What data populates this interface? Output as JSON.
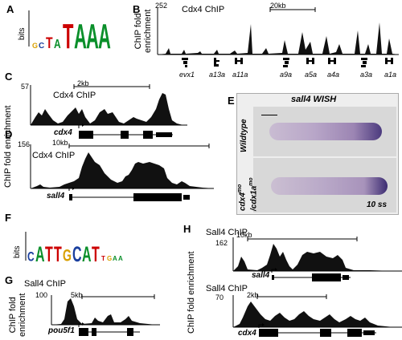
{
  "panels": {
    "A": {
      "label": "A",
      "ylabel": "bits",
      "motif": "GCTATAAA"
    },
    "B": {
      "label": "B",
      "chip": "Cdx4 ChIP",
      "ymax": "252",
      "ylabel_line1": "ChIP fold",
      "ylabel_line2": "enrichment",
      "scale": "20kb",
      "genes": [
        "evx1",
        "a13a",
        "a11a",
        "a9a",
        "a5a",
        "a4a",
        "a3a",
        "a1a"
      ]
    },
    "C": {
      "label": "C",
      "chip": "Cdx4 ChIP",
      "ymax": "57",
      "scale": "2kb",
      "gene": "cdx4"
    },
    "D": {
      "label": "D",
      "chip": "Cdx4 ChIP",
      "ymax": "156",
      "scale": "10kb",
      "gene": "sall4"
    },
    "CD_ylabel": "ChIP fold enrichment",
    "E": {
      "label": "E",
      "title": "sall4 WISH",
      "row1": "Wildtype",
      "row2_line1": "cdx4",
      "row2_sup1": "mo",
      "row2_line2": "/cdx1a",
      "row2_sup2": "mo",
      "stage": "10 ss"
    },
    "F": {
      "label": "F",
      "ylabel": "bits",
      "motif": "CATTGCATTGAA"
    },
    "G": {
      "label": "G",
      "chip": "Sall4 ChIP",
      "ymax": "100",
      "scale": "5kb",
      "gene": "pou5f1",
      "ylabel_line1": "ChIP fold",
      "ylabel_line2": "enrichment"
    },
    "H": {
      "label": "H",
      "chip1": "Sall4 ChIP",
      "ymax1": "162",
      "scale1": "10kb",
      "gene1": "sall4",
      "chip2": "Sall4 ChIP",
      "ymax2": "70",
      "scale2": "2kb",
      "gene2": "cdx4",
      "ylabel": "ChIP fold enrichment"
    }
  }
}
